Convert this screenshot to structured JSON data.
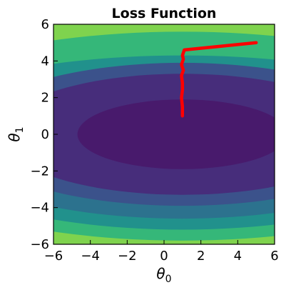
{
  "chart_data": {
    "type": "contour",
    "title": "Loss Function",
    "xlabel": "θ0",
    "ylabel": "θ1",
    "xlim": [
      -6,
      6
    ],
    "ylim": [
      -6,
      6
    ],
    "xticks": [
      -6,
      -4,
      -2,
      0,
      2,
      4,
      6
    ],
    "yticks": [
      -6,
      -4,
      -2,
      0,
      2,
      4,
      6
    ],
    "xtick_labels": [
      "−6",
      "−4",
      "−2",
      "0",
      "2",
      "4",
      "6"
    ],
    "ytick_labels": [
      "−6",
      "−4",
      "−2",
      "0",
      "2",
      "4",
      "6"
    ],
    "contour_center": [
      1.0,
      0.0
    ],
    "contour_fill_colors": [
      "#7fd34e",
      "#35b779",
      "#21918c",
      "#2c728e",
      "#3b528b",
      "#472d7b",
      "#481a6c"
    ],
    "contour_levels_y_below_center": [
      5.8,
      5.2,
      4.6,
      3.9,
      3.3,
      1.9
    ],
    "contour_levels_y_above_center": [
      5.6,
      4.3,
      1.9
    ],
    "contour_x_semi_axis_ratio": 3.0,
    "grid": false,
    "descent_path": {
      "color": "#ff0000",
      "x": [
        5.0,
        1.1,
        1.0,
        1.05,
        0.95,
        1.05,
        0.95,
        1.0,
        1.0,
        0.95,
        1.0,
        1.0
      ],
      "y": [
        5.0,
        4.6,
        4.3,
        4.1,
        3.8,
        3.5,
        3.2,
        2.8,
        2.4,
        2.0,
        1.5,
        1.0
      ]
    }
  }
}
